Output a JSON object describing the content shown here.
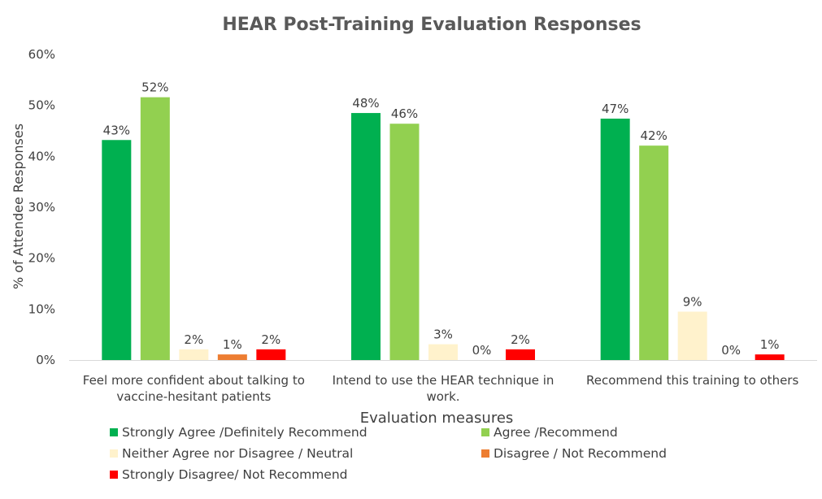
{
  "chart_data": {
    "type": "bar",
    "title": "HEAR Post-Training Evaluation Responses",
    "xlabel": "Evaluation measures",
    "ylabel": "% of Attendee Responses",
    "ylim": [
      0,
      60
    ],
    "yticks": [
      "0%",
      "10%",
      "20%",
      "30%",
      "40%",
      "50%",
      "60%"
    ],
    "grid": false,
    "legend_position": "bottom",
    "categories": [
      [
        "Feel more confident about talking to",
        "vaccine-hesitant patients"
      ],
      [
        "Intend to use the HEAR technique in",
        "work."
      ],
      [
        "Recommend this training to others"
      ]
    ],
    "series": [
      {
        "name": "Strongly Agree /Definitely Recommend",
        "color": "#00b050",
        "values": [
          43.2,
          48.5,
          47.4
        ],
        "labels": [
          "43%",
          "48%",
          "47%"
        ]
      },
      {
        "name": "Agree /Recommend",
        "color": "#92d050",
        "values": [
          51.6,
          46.4,
          42.1
        ],
        "labels": [
          "52%",
          "46%",
          "42%"
        ]
      },
      {
        "name": "Neither Agree nor Disagree / Neutral",
        "color": "#fff2cc",
        "values": [
          2.1,
          3.1,
          9.5
        ],
        "labels": [
          "2%",
          "3%",
          "9%"
        ]
      },
      {
        "name": "Disagree / Not Recommend",
        "color": "#ed7d31",
        "values": [
          1.1,
          0,
          0
        ],
        "labels": [
          "1%",
          "0%",
          "0%"
        ]
      },
      {
        "name": "Strongly Disagree/ Not Recommend",
        "color": "#ff0000",
        "values": [
          2.1,
          2.1,
          1.1
        ],
        "labels": [
          "2%",
          "2%",
          "1%"
        ]
      }
    ]
  }
}
